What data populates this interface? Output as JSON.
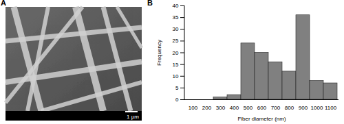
{
  "chart_data": {
    "type": "bar",
    "title": "B",
    "categories": [
      "100",
      "200",
      "300",
      "400",
      "500",
      "600",
      "700",
      "800",
      "900",
      "1000",
      "1100"
    ],
    "values": [
      0,
      0,
      1,
      2,
      24,
      20,
      16,
      12,
      36,
      8,
      7
    ],
    "color": "#808080",
    "x_label": "Fiber diameter (nm)",
    "y_label": "Frequency",
    "ylim": [
      0,
      40
    ],
    "yticks": [
      0,
      5,
      10,
      15,
      20,
      25,
      30,
      35,
      40
    ],
    "grid": false
  },
  "image": {
    "label": "A",
    "scale_bar": "1 µm"
  }
}
